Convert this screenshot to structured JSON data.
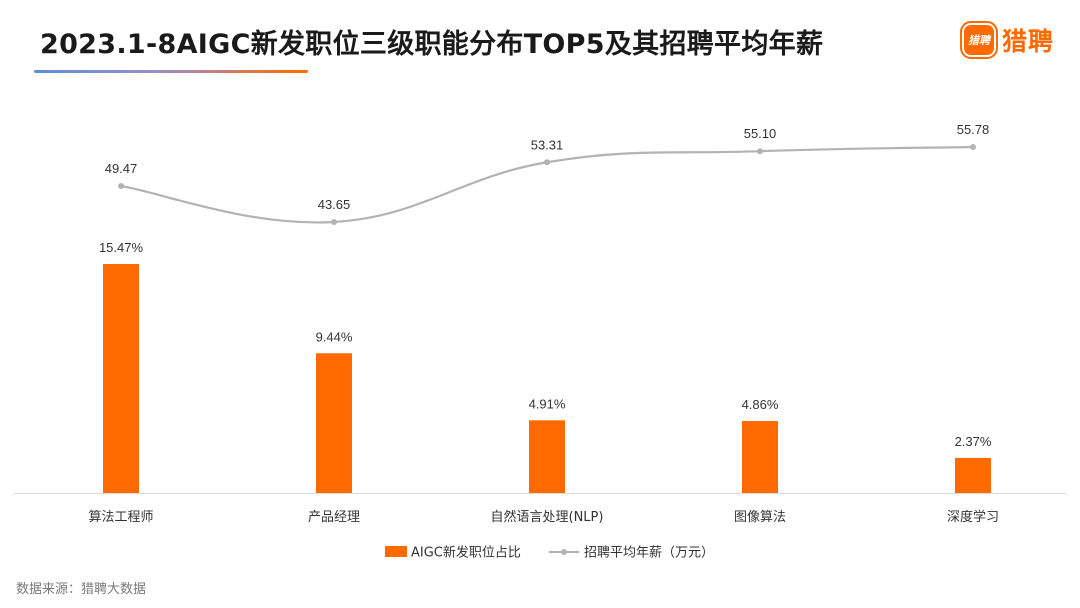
{
  "header": {
    "title": "2023.1-8AIGC新发职位三级职能分布TOP5及其招聘平均年薪",
    "brand_mark": "猎聘",
    "brand_name": "猎聘"
  },
  "footer": {
    "source": "数据来源：猎聘大数据"
  },
  "colors": {
    "bar": "#ff6a00",
    "line": "#b3b3b3",
    "brand": "#ff6a00"
  },
  "chart_data": {
    "type": "bar",
    "categories": [
      "算法工程师",
      "产品经理",
      "自然语言处理(NLP)",
      "图像算法",
      "深度学习"
    ],
    "series": [
      {
        "name": "AIGC新发职位占比",
        "type": "bar",
        "axis": "left",
        "values": [
          15.47,
          9.44,
          4.91,
          4.86,
          2.37
        ],
        "labels": [
          "15.47%",
          "9.44%",
          "4.91%",
          "4.86%",
          "2.37%"
        ]
      },
      {
        "name": "招聘平均年薪（万元）",
        "type": "line",
        "axis": "right",
        "smooth": true,
        "values": [
          49.47,
          43.65,
          53.31,
          55.1,
          55.78
        ],
        "labels": [
          "49.47",
          "43.65",
          "53.31",
          "55.10",
          "55.78"
        ]
      }
    ],
    "legend_position": "bottom",
    "grid": false
  }
}
